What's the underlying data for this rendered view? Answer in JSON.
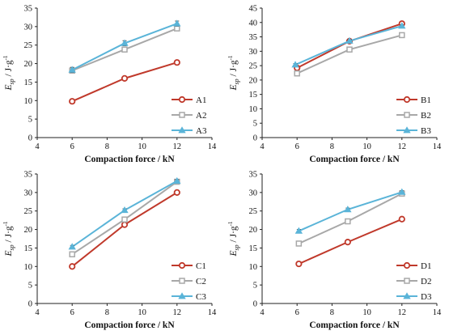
{
  "chart_data": [
    {
      "type": "line",
      "xlabel": "Compaction force / kN",
      "ylabel": "E_sp / J·g⁻¹",
      "xlim": [
        4,
        14
      ],
      "ylim": [
        0,
        35
      ],
      "xticks": [
        4,
        6,
        8,
        10,
        12,
        14
      ],
      "yticks": [
        0,
        5,
        10,
        15,
        20,
        25,
        30,
        35
      ],
      "legend_position": "bottom-right",
      "series": [
        {
          "name": "A1",
          "color": "#c0392b",
          "marker": "circle",
          "x": [
            6,
            9,
            12
          ],
          "y": [
            9.8,
            16.0,
            20.3
          ],
          "err": [
            0.2,
            0.2,
            0.2
          ]
        },
        {
          "name": "A2",
          "color": "#a8a8a8",
          "marker": "square",
          "x": [
            6,
            9,
            12
          ],
          "y": [
            18.1,
            23.8,
            29.5
          ],
          "err": [
            0.5,
            0.5,
            0.5
          ]
        },
        {
          "name": "A3",
          "color": "#5ab4d8",
          "marker": "triangle",
          "x": [
            6,
            9,
            12
          ],
          "y": [
            18.3,
            25.5,
            30.8
          ],
          "err": [
            0.7,
            0.7,
            0.7
          ]
        }
      ]
    },
    {
      "type": "line",
      "xlabel": "Compaction force / kN",
      "ylabel": "E_sp / J·g⁻¹",
      "xlim": [
        4,
        14
      ],
      "ylim": [
        0,
        45
      ],
      "xticks": [
        4,
        6,
        8,
        10,
        12,
        14
      ],
      "yticks": [
        0,
        5,
        10,
        15,
        20,
        25,
        30,
        35,
        40,
        45
      ],
      "legend_position": "bottom-right",
      "series": [
        {
          "name": "B1",
          "color": "#c0392b",
          "marker": "circle",
          "x": [
            6,
            9,
            12
          ],
          "y": [
            24.2,
            33.5,
            39.6
          ],
          "err": [
            0.4,
            0.4,
            0.4
          ]
        },
        {
          "name": "B2",
          "color": "#a8a8a8",
          "marker": "square",
          "x": [
            6,
            9,
            12
          ],
          "y": [
            22.3,
            30.6,
            35.6
          ],
          "err": [
            0.6,
            0.5,
            0.5
          ]
        },
        {
          "name": "B3",
          "color": "#5ab4d8",
          "marker": "triangle",
          "x": [
            5.9,
            9,
            12
          ],
          "y": [
            25.3,
            33.6,
            38.8
          ],
          "err": [
            0.4,
            0.4,
            0.4
          ]
        }
      ]
    },
    {
      "type": "line",
      "xlabel": "Compaction force / kN",
      "ylabel": "E_sp / J·g⁻¹",
      "xlim": [
        4,
        14
      ],
      "ylim": [
        0,
        35
      ],
      "xticks": [
        4,
        6,
        8,
        10,
        12,
        14
      ],
      "yticks": [
        0,
        5,
        10,
        15,
        20,
        25,
        30,
        35
      ],
      "legend_position": "bottom-right",
      "series": [
        {
          "name": "C1",
          "color": "#c0392b",
          "marker": "circle",
          "x": [
            6,
            9,
            12
          ],
          "y": [
            10.0,
            21.3,
            30.0
          ],
          "err": [
            0.2,
            0.2,
            0.2
          ]
        },
        {
          "name": "C2",
          "color": "#a8a8a8",
          "marker": "square",
          "x": [
            6,
            9,
            12
          ],
          "y": [
            13.3,
            22.7,
            32.9
          ],
          "err": [
            0.4,
            0.4,
            0.4
          ]
        },
        {
          "name": "C3",
          "color": "#5ab4d8",
          "marker": "triangle",
          "x": [
            6,
            9,
            12
          ],
          "y": [
            15.3,
            25.2,
            33.1
          ],
          "err": [
            0.4,
            0.4,
            0.4
          ]
        }
      ]
    },
    {
      "type": "line",
      "xlabel": "Compaction force / kN",
      "ylabel": "E_sp / J·g⁻¹",
      "xlim": [
        4,
        14
      ],
      "ylim": [
        0,
        35
      ],
      "xticks": [
        4,
        6,
        8,
        10,
        12,
        14
      ],
      "yticks": [
        0,
        5,
        10,
        15,
        20,
        25,
        30,
        35
      ],
      "legend_position": "bottom-right",
      "series": [
        {
          "name": "D1",
          "color": "#c0392b",
          "marker": "circle",
          "x": [
            6.1,
            8.9,
            12
          ],
          "y": [
            10.7,
            16.6,
            22.8
          ],
          "err": [
            0.2,
            0.2,
            0.2
          ]
        },
        {
          "name": "D2",
          "color": "#a8a8a8",
          "marker": "square",
          "x": [
            6.1,
            8.9,
            12
          ],
          "y": [
            16.2,
            22.2,
            29.7
          ],
          "err": [
            0.5,
            0.5,
            0.5
          ]
        },
        {
          "name": "D3",
          "color": "#5ab4d8",
          "marker": "triangle",
          "x": [
            6.1,
            8.9,
            12
          ],
          "y": [
            19.6,
            25.4,
            30.1
          ],
          "err": [
            0.4,
            0.4,
            0.4
          ]
        }
      ]
    }
  ]
}
